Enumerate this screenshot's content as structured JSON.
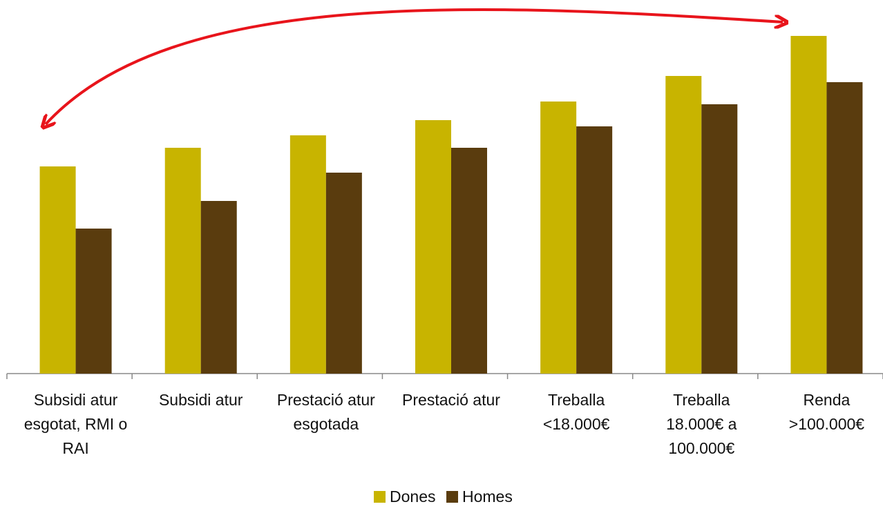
{
  "chart_data": {
    "type": "bar",
    "categories": [
      "Subsidi atur esgotat, RMI o RAI",
      "Subsidi atur",
      "Prestació atur esgotada",
      "Prestació atur",
      "Treballa <18.000€",
      "Treballa 18.000€ a 100.000€",
      "Renda >100.000€"
    ],
    "series": [
      {
        "name": "Dones",
        "color": "#c8b400",
        "values": [
          300,
          327,
          345,
          367,
          394,
          431,
          489
        ]
      },
      {
        "name": "Homes",
        "color": "#5a3c0e",
        "values": [
          210,
          250,
          291,
          327,
          358,
          390,
          422
        ]
      }
    ],
    "ylim": [
      0,
      540
    ]
  }
}
